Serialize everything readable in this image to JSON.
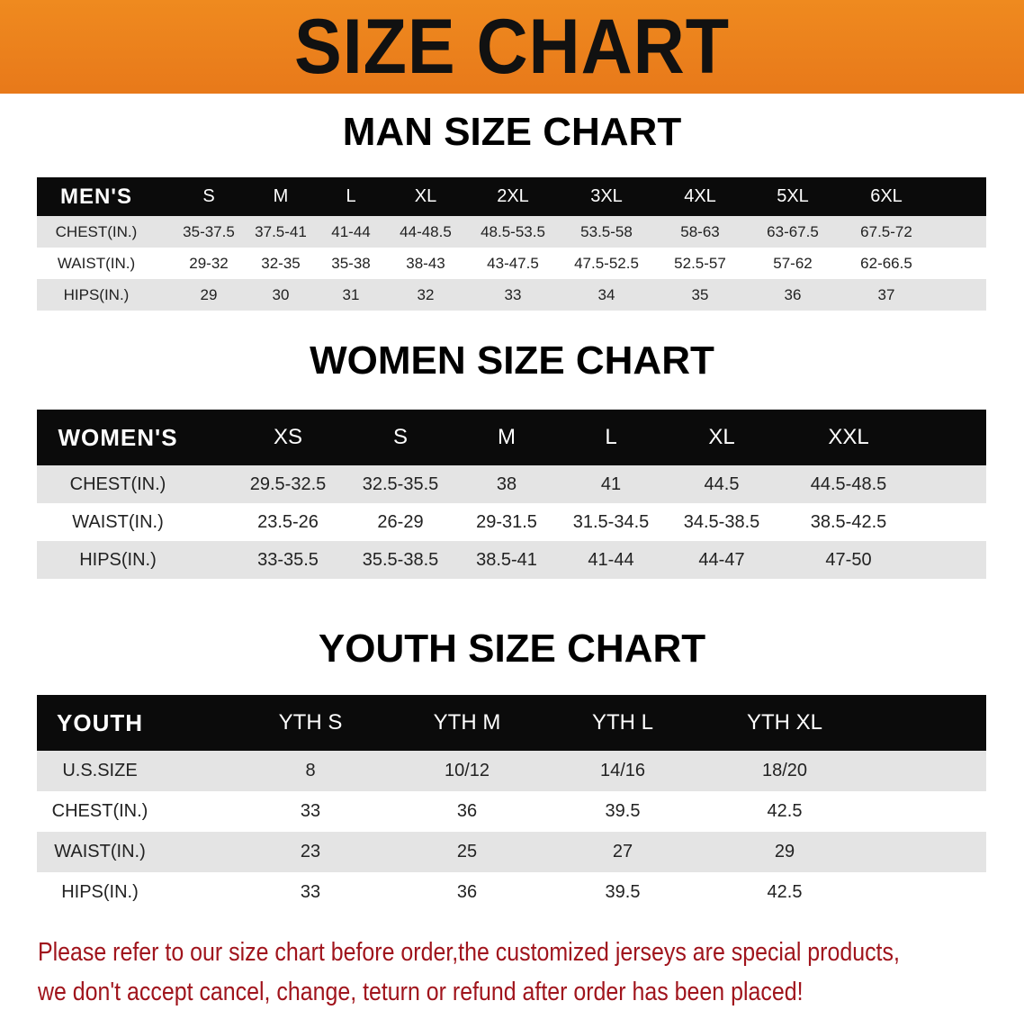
{
  "banner_title": "SIZE CHART",
  "colors": {
    "banner": "#ef8a1f",
    "header_row": "#0b0b0b",
    "shaded_row": "#e4e4e4",
    "note_text": "#a0141c"
  },
  "men": {
    "title": "MAN SIZE CHART",
    "header": [
      "MEN'S",
      "S",
      "M",
      "L",
      "XL",
      "2XL",
      "3XL",
      "4XL",
      "5XL",
      "6XL"
    ],
    "rows": [
      [
        "CHEST(IN.)",
        "35-37.5",
        "37.5-41",
        "41-44",
        "44-48.5",
        "48.5-53.5",
        "53.5-58",
        "58-63",
        "63-67.5",
        "67.5-72"
      ],
      [
        "WAIST(IN.)",
        "29-32",
        "32-35",
        "35-38",
        "38-43",
        "43-47.5",
        "47.5-52.5",
        "52.5-57",
        "57-62",
        "62-66.5"
      ],
      [
        "HIPS(IN.)",
        "29",
        "30",
        "31",
        "32",
        "33",
        "34",
        "35",
        "36",
        "37"
      ]
    ]
  },
  "women": {
    "title": "WOMEN SIZE CHART",
    "header": [
      "WOMEN'S",
      "XS",
      "S",
      "M",
      "L",
      "XL",
      "XXL"
    ],
    "rows": [
      [
        "CHEST(IN.)",
        "29.5-32.5",
        "32.5-35.5",
        "38",
        "41",
        "44.5",
        "44.5-48.5"
      ],
      [
        "WAIST(IN.)",
        "23.5-26",
        "26-29",
        "29-31.5",
        "31.5-34.5",
        "34.5-38.5",
        "38.5-42.5"
      ],
      [
        "HIPS(IN.)",
        "33-35.5",
        "35.5-38.5",
        "38.5-41",
        "41-44",
        "44-47",
        "47-50"
      ]
    ]
  },
  "youth": {
    "title": "YOUTH SIZE CHART",
    "header": [
      "YOUTH",
      "YTH S",
      "YTH M",
      "YTH L",
      "YTH XL"
    ],
    "rows": [
      [
        "U.S.SIZE",
        "8",
        "10/12",
        "14/16",
        "18/20"
      ],
      [
        "CHEST(IN.)",
        "33",
        "36",
        "39.5",
        "42.5"
      ],
      [
        "WAIST(IN.)",
        "23",
        "25",
        "27",
        "29"
      ],
      [
        "HIPS(IN.)",
        "33",
        "36",
        "39.5",
        "42.5"
      ]
    ]
  },
  "note": [
    "Please refer to our size chart before order,the customized jerseys are special products,",
    "we don't accept cancel, change, teturn or refund after order has been placed!"
  ]
}
